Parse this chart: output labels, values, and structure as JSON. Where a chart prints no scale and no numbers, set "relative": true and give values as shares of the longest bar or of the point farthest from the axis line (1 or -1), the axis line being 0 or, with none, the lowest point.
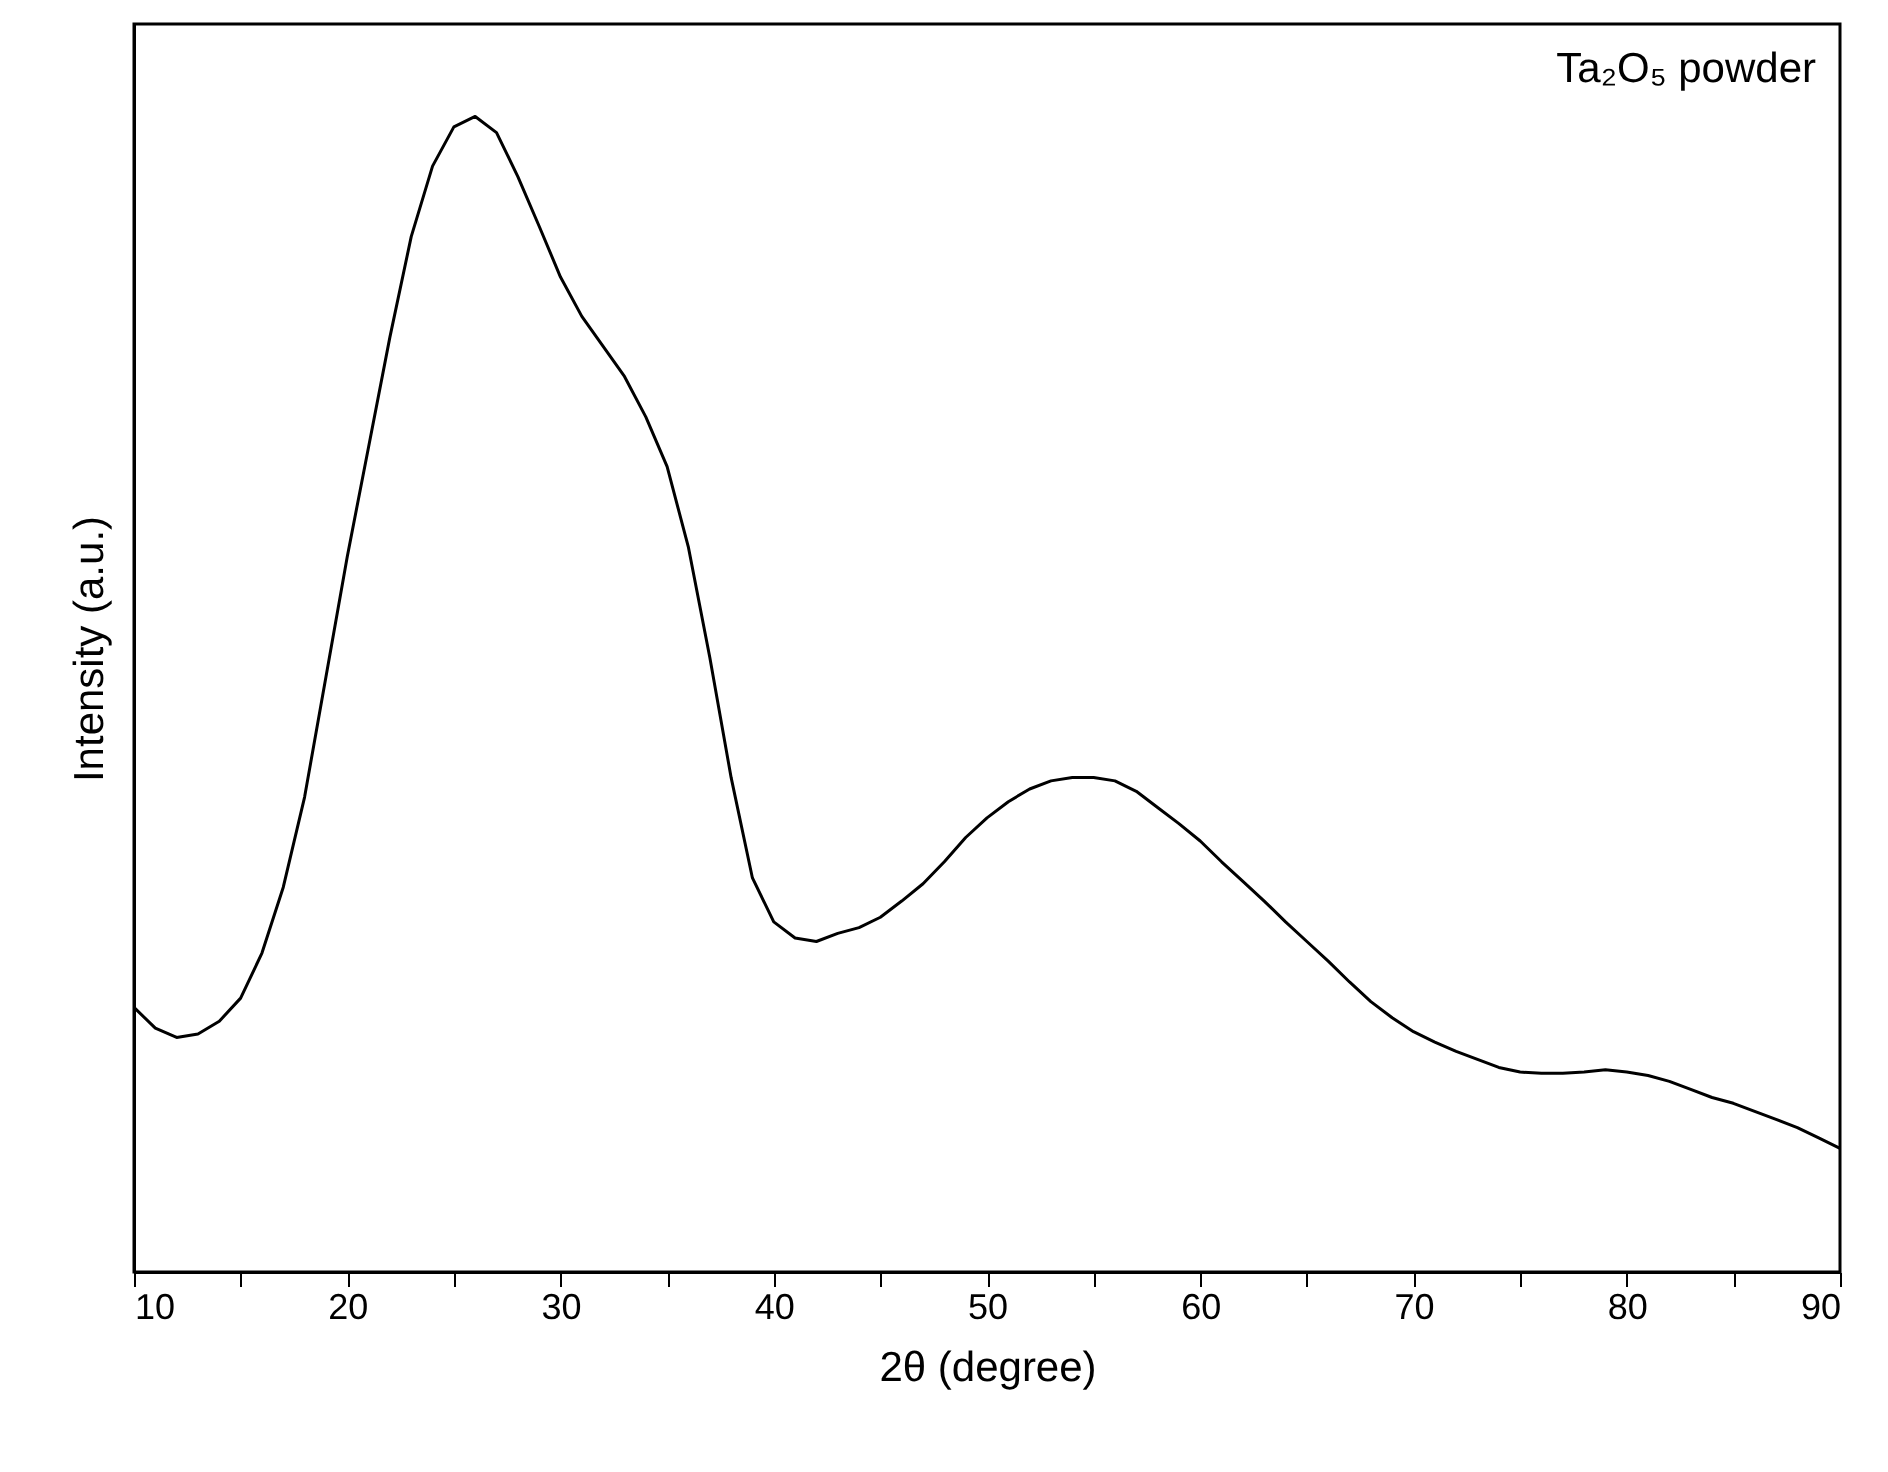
{
  "chart_data": {
    "type": "line",
    "xlabel": "2θ (degree)",
    "ylabel": "Intensity (a.u.)",
    "relative": true,
    "annotations": [
      "Ta₂O₅ powder"
    ],
    "xlim": [
      10,
      90
    ],
    "xticks": [
      10,
      {
        "value": 15,
        "label": null
      },
      20,
      {
        "value": 25,
        "label": null
      },
      30,
      {
        "value": 35,
        "label": null
      },
      40,
      {
        "value": 45,
        "label": null
      },
      50,
      {
        "value": 55,
        "label": null
      },
      60,
      {
        "value": 65,
        "label": null
      },
      70,
      {
        "value": 75,
        "label": null
      },
      80,
      {
        "value": 85,
        "label": null
      },
      90
    ],
    "x": [
      10,
      11,
      12,
      13,
      14,
      15,
      16,
      17,
      18,
      19,
      20,
      21,
      22,
      23,
      24,
      25,
      26,
      27,
      28,
      29,
      30,
      31,
      32,
      33,
      34,
      35,
      36,
      37,
      38,
      39,
      40,
      41,
      42,
      43,
      44,
      45,
      46,
      47,
      48,
      49,
      50,
      51,
      52,
      53,
      54,
      55,
      56,
      57,
      58,
      59,
      60,
      61,
      62,
      63,
      64,
      65,
      66,
      67,
      68,
      69,
      70,
      71,
      72,
      73,
      74,
      75,
      76,
      77,
      78,
      79,
      80,
      81,
      82,
      83,
      84,
      85,
      86,
      87,
      88,
      89,
      90
    ],
    "series": [
      {
        "color": "#000000",
        "values": [
          0.229,
          0.211,
          0.203,
          0.206,
          0.217,
          0.237,
          0.276,
          0.333,
          0.411,
          0.515,
          0.619,
          0.714,
          0.809,
          0.896,
          0.957,
          0.991,
          1.0,
          0.986,
          0.948,
          0.905,
          0.861,
          0.827,
          0.801,
          0.775,
          0.74,
          0.697,
          0.627,
          0.532,
          0.428,
          0.341,
          0.303,
          0.289,
          0.286,
          0.293,
          0.298,
          0.307,
          0.321,
          0.336,
          0.355,
          0.376,
          0.393,
          0.407,
          0.418,
          0.425,
          0.428,
          0.428,
          0.425,
          0.416,
          0.402,
          0.388,
          0.373,
          0.355,
          0.338,
          0.321,
          0.303,
          0.286,
          0.269,
          0.251,
          0.234,
          0.22,
          0.208,
          0.199,
          0.191,
          0.184,
          0.177,
          0.173,
          0.172,
          0.172,
          0.173,
          0.175,
          0.173,
          0.17,
          0.165,
          0.158,
          0.151,
          0.146,
          0.139,
          0.132,
          0.125,
          0.116,
          0.107
        ]
      }
    ],
    "grid": false,
    "marker": "none",
    "line_style": "solid"
  }
}
